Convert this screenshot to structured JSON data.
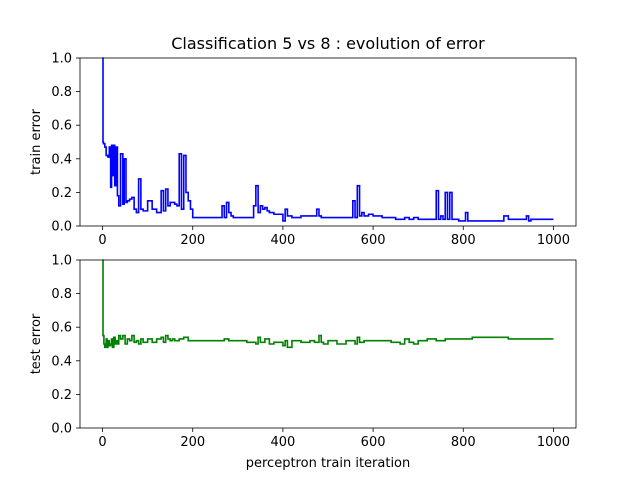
{
  "chart_data": {
    "title": "Classification 5 vs 8 : evolution of error",
    "xlabel": "perceptron train iteration",
    "subplots": [
      {
        "type": "line",
        "ylabel": "train error",
        "xlim": [
          -50,
          1050
        ],
        "ylim": [
          0.0,
          1.0
        ],
        "xticks": [
          0,
          200,
          400,
          600,
          800,
          1000
        ],
        "yticks": [
          0.0,
          0.2,
          0.4,
          0.6,
          0.8,
          1.0
        ],
        "xtick_labels": [
          "0",
          "200",
          "400",
          "600",
          "800",
          "1000"
        ],
        "ytick_labels": [
          "0.0",
          "0.2",
          "0.4",
          "0.6",
          "0.8",
          "1.0"
        ],
        "grid": false,
        "color": "#0000ff",
        "series": [
          {
            "x": [
              0,
              1,
              2,
              5,
              8,
              12,
              15,
              18,
              20,
              22,
              24,
              27,
              30,
              33,
              36,
              40,
              45,
              48,
              52,
              55,
              60,
              65,
              70,
              75,
              80,
              85,
              90,
              95,
              100,
              110,
              120,
              130,
              135,
              140,
              145,
              150,
              155,
              160,
              165,
              170,
              175,
              180,
              185,
              190,
              195,
              200,
              220,
              240,
              260,
              265,
              270,
              275,
              280,
              285,
              290,
              300,
              320,
              335,
              340,
              345,
              350,
              355,
              360,
              365,
              370,
              380,
              400,
              405,
              410,
              420,
              440,
              460,
              475,
              480,
              485,
              500,
              520,
              540,
              555,
              560,
              565,
              570,
              575,
              580,
              590,
              600,
              620,
              640,
              650,
              660,
              670,
              680,
              690,
              700,
              720,
              735,
              740,
              745,
              750,
              755,
              760,
              765,
              770,
              775,
              780,
              790,
              800,
              805,
              810,
              820,
              850,
              880,
              890,
              900,
              920,
              935,
              940,
              945,
              950,
              960,
              980,
              1000
            ],
            "y": [
              1.0,
              0.5,
              0.49,
              0.47,
              0.42,
              0.41,
              0.47,
              0.23,
              0.48,
              0.3,
              0.48,
              0.24,
              0.47,
              0.18,
              0.12,
              0.43,
              0.13,
              0.4,
              0.14,
              0.15,
              0.16,
              0.17,
              0.1,
              0.08,
              0.28,
              0.1,
              0.09,
              0.09,
              0.15,
              0.1,
              0.08,
              0.21,
              0.09,
              0.22,
              0.12,
              0.14,
              0.14,
              0.13,
              0.12,
              0.43,
              0.1,
              0.42,
              0.2,
              0.15,
              0.1,
              0.05,
              0.05,
              0.05,
              0.05,
              0.12,
              0.05,
              0.14,
              0.08,
              0.06,
              0.05,
              0.05,
              0.05,
              0.12,
              0.24,
              0.08,
              0.12,
              0.1,
              0.11,
              0.09,
              0.08,
              0.07,
              0.03,
              0.1,
              0.06,
              0.05,
              0.06,
              0.06,
              0.1,
              0.06,
              0.05,
              0.05,
              0.05,
              0.05,
              0.15,
              0.05,
              0.24,
              0.06,
              0.08,
              0.06,
              0.07,
              0.06,
              0.05,
              0.05,
              0.04,
              0.04,
              0.05,
              0.04,
              0.05,
              0.04,
              0.04,
              0.04,
              0.21,
              0.04,
              0.06,
              0.04,
              0.2,
              0.04,
              0.2,
              0.04,
              0.04,
              0.03,
              0.03,
              0.08,
              0.03,
              0.03,
              0.03,
              0.03,
              0.06,
              0.04,
              0.04,
              0.04,
              0.06,
              0.03,
              0.04,
              0.04,
              0.04,
              0.04
            ]
          }
        ]
      },
      {
        "type": "line",
        "ylabel": "test error",
        "xlim": [
          -50,
          1050
        ],
        "ylim": [
          0.0,
          1.0
        ],
        "xticks": [
          0,
          200,
          400,
          600,
          800,
          1000
        ],
        "yticks": [
          0.0,
          0.2,
          0.4,
          0.6,
          0.8,
          1.0
        ],
        "xtick_labels": [
          "0",
          "200",
          "400",
          "600",
          "800",
          "1000"
        ],
        "ytick_labels": [
          "0.0",
          "0.2",
          "0.4",
          "0.6",
          "0.8",
          "1.0"
        ],
        "grid": false,
        "color": "#008000",
        "series": [
          {
            "x": [
              0,
              1,
              3,
              5,
              8,
              10,
              12,
              15,
              18,
              20,
              22,
              25,
              28,
              30,
              33,
              36,
              40,
              45,
              50,
              55,
              60,
              65,
              70,
              75,
              80,
              85,
              90,
              100,
              110,
              120,
              130,
              135,
              140,
              145,
              150,
              155,
              160,
              170,
              180,
              190,
              200,
              220,
              240,
              260,
              270,
              280,
              300,
              320,
              340,
              345,
              350,
              360,
              370,
              380,
              400,
              405,
              410,
              420,
              440,
              460,
              470,
              480,
              485,
              490,
              500,
              520,
              540,
              560,
              565,
              570,
              580,
              600,
              620,
              640,
              660,
              670,
              680,
              690,
              700,
              720,
              740,
              760,
              780,
              800,
              820,
              850,
              880,
              900,
              920,
              940,
              960,
              980,
              1000
            ],
            "y": [
              1.0,
              0.55,
              0.5,
              0.48,
              0.53,
              0.48,
              0.52,
              0.49,
              0.5,
              0.53,
              0.48,
              0.54,
              0.5,
              0.52,
              0.5,
              0.55,
              0.53,
              0.55,
              0.5,
              0.53,
              0.52,
              0.55,
              0.51,
              0.52,
              0.5,
              0.53,
              0.51,
              0.53,
              0.51,
              0.53,
              0.54,
              0.51,
              0.55,
              0.53,
              0.52,
              0.53,
              0.52,
              0.53,
              0.54,
              0.52,
              0.52,
              0.52,
              0.52,
              0.52,
              0.53,
              0.52,
              0.52,
              0.51,
              0.5,
              0.54,
              0.51,
              0.53,
              0.5,
              0.51,
              0.49,
              0.52,
              0.48,
              0.52,
              0.51,
              0.52,
              0.51,
              0.55,
              0.51,
              0.5,
              0.52,
              0.5,
              0.52,
              0.5,
              0.54,
              0.51,
              0.52,
              0.52,
              0.52,
              0.51,
              0.5,
              0.53,
              0.51,
              0.5,
              0.52,
              0.53,
              0.52,
              0.53,
              0.53,
              0.53,
              0.54,
              0.54,
              0.54,
              0.53,
              0.53,
              0.53,
              0.53,
              0.53,
              0.53
            ]
          }
        ]
      }
    ]
  }
}
